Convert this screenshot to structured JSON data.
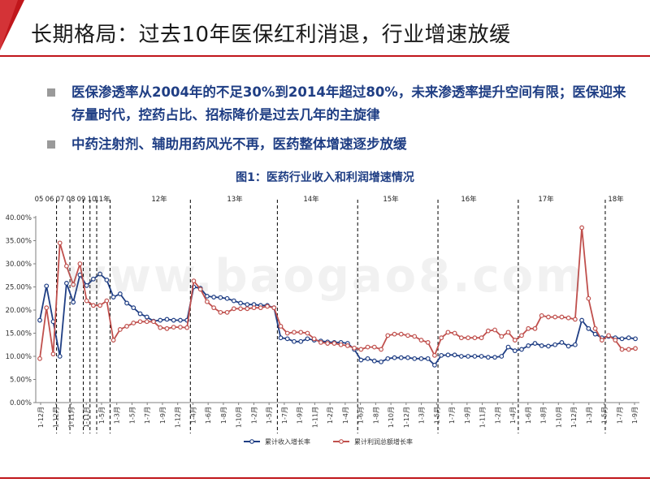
{
  "slide": {
    "title": "长期格局：过去10年医保红利消退，行业增速放缓",
    "bullets": [
      "医保渗透率从2004年的不足30%到2014年超过80%，未来渗透率提升空间有限；医保迎来存量时代，控药占比、招标降价是过去几年的主旋律",
      "中药注射剂、辅助用药风光不再，医药整体增速逐步放缓"
    ],
    "watermark": "www.baogao8.com"
  },
  "colors": {
    "accent": "#c0161b",
    "text_blue": "#1f3e84",
    "series_revenue": "#1f3e84",
    "series_profit": "#c0504d"
  },
  "chart_data": {
    "type": "line",
    "title": "图1：医药行业收入和利润增速情况",
    "year_labels": [
      "05",
      "06",
      "07",
      "08",
      "09",
      "10",
      "11年",
      "12年",
      "13年",
      "14年",
      "15年",
      "16年",
      "17年",
      "18年"
    ],
    "x_tick_labels": [
      "1-12月",
      "1-12月",
      "1-11月",
      "1-11月",
      "1-5月",
      "1-3月",
      "1-5月",
      "1-7月",
      "1-9月",
      "1-12月",
      "1-4月",
      "1-6月",
      "1-8月",
      "1-10月",
      "1-2月",
      "1-5月",
      "1-7月",
      "1-9月",
      "1-11月",
      "1-2月",
      "1-4月",
      "1-6月",
      "1-8月",
      "1-10月",
      "1-12月",
      "1-3月",
      "1-5月",
      "1-7月",
      "1-9月",
      "1-11月",
      "1-2月",
      "1-4月",
      "1-6月",
      "1-8月",
      "1-10月",
      "1-12月",
      "1-3月",
      "1-5月",
      "1-7月",
      "1-9月"
    ],
    "y_ticks": [
      "0.00%",
      "5.00%",
      "10.00%",
      "15.00%",
      "20.00%",
      "25.00%",
      "30.00%",
      "35.00%",
      "40.00%"
    ],
    "ylim": [
      0,
      40
    ],
    "grid": false,
    "legend_position": "bottom-center",
    "series": [
      {
        "name": "累计收入增长率",
        "values": [
          17.8,
          25.2,
          17.5,
          10.0,
          25.8,
          21.7,
          27.6,
          25.3,
          26.7,
          27.8,
          26.5,
          22.8,
          23.5,
          21.5,
          20.5,
          19.2,
          18.5,
          17.6,
          17.8,
          18.0,
          17.8,
          17.8,
          17.8,
          25.0,
          24.7,
          23.0,
          22.8,
          22.7,
          22.5,
          22.0,
          21.5,
          21.2,
          21.2,
          21.0,
          21.0,
          20.5,
          14.0,
          13.8,
          13.2,
          13.2,
          13.8,
          13.5,
          13.3,
          13.1,
          13.0,
          13.0,
          12.8,
          11.5,
          9.2,
          9.5,
          9.0,
          8.8,
          9.5,
          9.7,
          9.7,
          9.7,
          9.5,
          9.5,
          9.5,
          8.1,
          10.2,
          10.3,
          10.3,
          10.0,
          10.0,
          10.0,
          10.0,
          9.8,
          9.8,
          10.0,
          12.0,
          11.2,
          11.5,
          12.3,
          12.8,
          12.3,
          12.2,
          12.5,
          13.0,
          12.2,
          12.5,
          17.8,
          16.0,
          14.8,
          14.0,
          14.3,
          14.0,
          13.8,
          14.0,
          13.8
        ],
        "color": "#1f3e84"
      },
      {
        "name": "累计利润总额增长率",
        "values": [
          9.5,
          20.5,
          10.5,
          34.5,
          29.5,
          25.5,
          30.0,
          22.0,
          21.0,
          21.0,
          22.0,
          13.5,
          15.8,
          16.5,
          17.2,
          17.5,
          17.5,
          17.5,
          16.2,
          16.0,
          16.3,
          16.3,
          16.2,
          26.3,
          24.5,
          21.8,
          20.5,
          19.5,
          19.5,
          20.3,
          20.3,
          20.3,
          20.5,
          20.5,
          20.8,
          20.5,
          16.5,
          15.0,
          15.2,
          15.2,
          15.0,
          13.8,
          13.0,
          12.8,
          12.8,
          12.5,
          12.3,
          11.8,
          11.5,
          12.0,
          12.0,
          11.5,
          14.5,
          14.8,
          14.8,
          14.5,
          14.3,
          13.5,
          13.0,
          10.2,
          14.0,
          15.2,
          15.0,
          14.0,
          14.0,
          14.0,
          14.0,
          15.5,
          15.7,
          14.3,
          15.2,
          13.5,
          14.5,
          16.0,
          16.0,
          18.8,
          18.5,
          18.5,
          18.5,
          18.3,
          18.0,
          37.8,
          22.5,
          16.0,
          13.5,
          14.5,
          13.5,
          11.5,
          11.5,
          11.7
        ],
        "color": "#c0504d"
      }
    ]
  }
}
